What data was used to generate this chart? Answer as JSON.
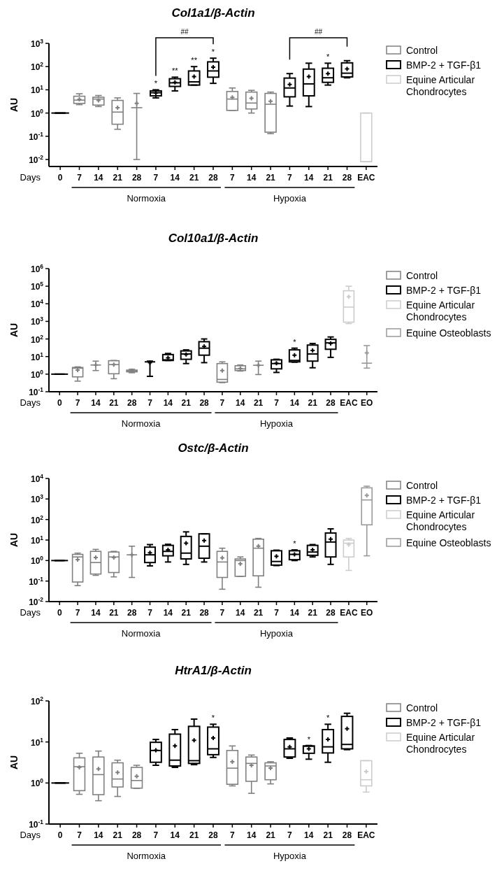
{
  "chart_data": [
    {
      "type": "box",
      "title": "Col1a1/β-Actin",
      "xlabel": "Days",
      "ylabel": "AU",
      "log": true,
      "legend": "right",
      "ylim": [
        0.005,
        1000
      ],
      "yticks": [
        {
          "value": 0.01,
          "label": "10$^{-2}$"
        },
        {
          "value": 0.1,
          "label": "10$^{-1}$"
        },
        {
          "value": 1,
          "label": "10$^{0}$"
        },
        {
          "value": 10,
          "label": "10$^{1}$"
        },
        {
          "value": 100,
          "label": "10$^{2}$"
        },
        {
          "value": 1000,
          "label": "10$^{3}$"
        }
      ],
      "categories": [
        "0",
        "7",
        "14",
        "21",
        "28",
        "7",
        "14",
        "21",
        "28",
        "7",
        "14",
        "21",
        "7",
        "14",
        "21",
        "28",
        "EAC"
      ],
      "annotations": [
        "*",
        "**",
        "**",
        "*",
        "*",
        "##",
        "##",
        "Normoxia",
        "Hypoxia"
      ],
      "series": [
        {
          "color": "#000000",
          "boxes": [
            {
              "low": 1,
              "q1": 1,
              "median": 1,
              "q3": 1,
              "high": 1
            },
            null,
            null,
            null,
            null,
            null,
            null,
            null,
            null,
            null,
            null,
            null,
            null,
            null,
            null,
            null,
            null
          ]
        },
        {
          "name": "Control",
          "color": "#808080",
          "boxes": [
            null,
            {
              "low": 2.3,
              "q1": 2.6,
              "median": 3.6,
              "q3": 5.3,
              "high": 6.8,
              "mean": 3.9
            },
            {
              "low": 1.9,
              "q1": 2.2,
              "median": 4,
              "q3": 4.8,
              "high": 5.7,
              "mean": 3.5
            },
            {
              "low": 0.2,
              "q1": 0.33,
              "median": 1.1,
              "q3": 3.5,
              "high": 4.5,
              "mean": 1.7
            },
            {
              "low": 0.01,
              "q1": 1.7,
              "median": 1.7,
              "q3": 1.7,
              "high": 7,
              "mean": 2.6
            },
            null,
            null,
            null,
            null,
            {
              "low": 1.3,
              "q1": 1.3,
              "median": 4,
              "q3": 8.5,
              "high": 12,
              "mean": 4.7
            },
            {
              "low": 1,
              "q1": 1.5,
              "median": 2.7,
              "q3": 8,
              "high": 9.5,
              "mean": 4.3
            },
            {
              "low": 0.13,
              "q1": 0.15,
              "median": 2.4,
              "q3": 7,
              "high": 8,
              "mean": 3.2
            },
            null,
            null,
            null,
            null,
            null
          ]
        },
        {
          "name": "BMP-2 + TGF-β1",
          "color": "#000000",
          "boxes": [
            null,
            null,
            null,
            null,
            null,
            {
              "low": 4.5,
              "q1": 5.5,
              "median": 7.5,
              "q3": 9,
              "high": 10,
              "mean": 7.3
            },
            {
              "low": 9,
              "q1": 14,
              "median": 20,
              "q3": 30,
              "high": 35,
              "mean": 21
            },
            {
              "low": 16,
              "q1": 16,
              "median": 22,
              "q3": 65,
              "high": 100,
              "mean": 37
            },
            {
              "low": 19,
              "q1": 35,
              "median": 65,
              "q3": 160,
              "high": 230,
              "mean": 95
            },
            null,
            null,
            null,
            {
              "low": 2,
              "q1": 5,
              "median": 12,
              "q3": 32,
              "high": 50,
              "mean": 17
            },
            {
              "low": 1.9,
              "q1": 5.5,
              "median": 18,
              "q3": 78,
              "high": 140,
              "mean": 37
            },
            {
              "low": 16,
              "q1": 21,
              "median": 33,
              "q3": 85,
              "high": 140,
              "mean": 50
            },
            {
              "low": 33,
              "q1": 36,
              "median": 52,
              "q3": 145,
              "high": 180,
              "mean": 80
            },
            null
          ]
        },
        {
          "name": "Equine Articular Chondrocytes",
          "color": "#cccccc",
          "boxes": [
            null,
            null,
            null,
            null,
            null,
            null,
            null,
            null,
            null,
            null,
            null,
            null,
            null,
            null,
            null,
            null,
            {
              "low": 0.008,
              "q1": 0.008,
              "median": 0.008,
              "q3": 1,
              "high": 1
            }
          ]
        }
      ]
    },
    {
      "type": "box",
      "title": "Col10a1/β-Actin",
      "xlabel": "Days",
      "ylabel": "AU",
      "log": true,
      "legend": "right",
      "ylim": [
        0.1,
        1000000
      ],
      "yticks": [
        {
          "value": 0.1,
          "label": "10$^{-1}$"
        },
        {
          "value": 1,
          "label": "10$^{0}$"
        },
        {
          "value": 10,
          "label": "10$^{1}$"
        },
        {
          "value": 100,
          "label": "10$^{2}$"
        },
        {
          "value": 1000,
          "label": "10$^{3}$"
        },
        {
          "value": 10000,
          "label": "10$^{4}$"
        },
        {
          "value": 100000,
          "label": "10$^{5}$"
        },
        {
          "value": 1000000,
          "label": "10$^{6}$"
        }
      ],
      "categories": [
        "0",
        "7",
        "14",
        "21",
        "28",
        "7",
        "14",
        "21",
        "28",
        "7",
        "14",
        "21",
        "7",
        "14",
        "21",
        "28",
        "EAC",
        "EO"
      ],
      "annotations": [
        "*",
        "Normoxia",
        "Hypoxia"
      ],
      "series": [
        {
          "color": "#000000",
          "boxes": [
            {
              "low": 1,
              "q1": 1,
              "median": 1,
              "q3": 1,
              "high": 1
            },
            null,
            null,
            null,
            null,
            null,
            null,
            null,
            null,
            null,
            null,
            null,
            null,
            null,
            null,
            null,
            null,
            null
          ]
        },
        {
          "name": "Control",
          "color": "#808080",
          "boxes": [
            null,
            {
              "low": 0.4,
              "q1": 0.7,
              "median": 2.2,
              "q3": 2.4,
              "high": 2.6,
              "mean": 1.7
            },
            {
              "low": 1.6,
              "q1": 3.3,
              "median": 3.3,
              "q3": 3.3,
              "high": 5.5,
              "mean": 3.3
            },
            {
              "low": 0.55,
              "q1": 1.05,
              "median": 3.5,
              "q3": 5.8,
              "high": 6,
              "mean": 3.5
            },
            {
              "low": 1.2,
              "q1": 1.35,
              "median": 1.55,
              "q3": 1.7,
              "high": 1.9,
              "mean": 1.6
            },
            null,
            null,
            null,
            null,
            {
              "low": 0.33,
              "q1": 0.35,
              "median": 0.5,
              "q3": 4,
              "high": 5,
              "mean": 1.6
            },
            {
              "low": 1.5,
              "q1": 1.6,
              "median": 2,
              "q3": 3,
              "high": 3.3,
              "mean": 2.1
            },
            {
              "low": 0.95,
              "q1": 3.2,
              "median": 3.2,
              "q3": 3.2,
              "high": 5.5,
              "mean": 3.2
            },
            null,
            null,
            null,
            null,
            null,
            null
          ]
        },
        {
          "name": "BMP-2 + TGF-β1",
          "color": "#000000",
          "boxes": [
            null,
            null,
            null,
            null,
            null,
            {
              "low": 0.75,
              "q1": 5,
              "median": 5,
              "q3": 5,
              "high": 5.5,
              "mean": 4.5
            },
            {
              "low": 6,
              "q1": 6,
              "median": 6.5,
              "q3": 13,
              "high": 15,
              "mean": 8.5
            },
            {
              "low": 4,
              "q1": 7,
              "median": 14,
              "q3": 21,
              "high": 24,
              "mean": 13
            },
            {
              "low": 4.5,
              "q1": 12,
              "median": 30,
              "q3": 70,
              "high": 100,
              "mean": 38
            },
            null,
            null,
            null,
            {
              "low": 1.25,
              "q1": 2,
              "median": 4,
              "q3": 6.5,
              "high": 7,
              "mean": 4.2
            },
            {
              "low": 4.8,
              "q1": 5,
              "median": 6,
              "q3": 24,
              "high": 30,
              "mean": 12
            },
            {
              "low": 2.3,
              "q1": 5.5,
              "median": 14,
              "q3": 45,
              "high": 55,
              "mean": 22
            },
            {
              "low": 9,
              "q1": 26,
              "median": 60,
              "q3": 95,
              "high": 130,
              "mean": 55
            },
            null,
            null
          ]
        },
        {
          "name": "Equine Articular Chondrocytes",
          "color": "#cccccc",
          "boxes": [
            null,
            null,
            null,
            null,
            null,
            null,
            null,
            null,
            null,
            null,
            null,
            null,
            null,
            null,
            null,
            null,
            {
              "low": 750,
              "q1": 900,
              "median": 6500,
              "q3": 55000,
              "high": 100000,
              "mean": 25000
            },
            null
          ]
        },
        {
          "name": "Equine Osteoblasts",
          "color": "#999999",
          "boxes": [
            null,
            null,
            null,
            null,
            null,
            null,
            null,
            null,
            null,
            null,
            null,
            null,
            null,
            null,
            null,
            null,
            null,
            {
              "low": 2.2,
              "q1": 4.2,
              "median": 4.2,
              "q3": 4.2,
              "high": 42,
              "mean": 16
            }
          ]
        }
      ]
    },
    {
      "type": "box",
      "title": "Ostc/β-Actin",
      "xlabel": "Days",
      "ylabel": "AU",
      "log": true,
      "legend": "right",
      "ylim": [
        0.01,
        10000
      ],
      "yticks": [
        {
          "value": 0.01,
          "label": "10$^{-2}$"
        },
        {
          "value": 0.1,
          "label": "10$^{-1}$"
        },
        {
          "value": 1,
          "label": "10$^{0}$"
        },
        {
          "value": 10,
          "label": "10$^{1}$"
        },
        {
          "value": 100,
          "label": "10$^{2}$"
        },
        {
          "value": 1000,
          "label": "10$^{3}$"
        },
        {
          "value": 10000,
          "label": "10$^{4}$"
        }
      ],
      "categories": [
        "0",
        "7",
        "14",
        "21",
        "28",
        "7",
        "14",
        "21",
        "28",
        "7",
        "14",
        "21",
        "7",
        "14",
        "21",
        "28",
        "EAC",
        "EO"
      ],
      "annotations": [
        "*",
        "Normoxia",
        "Hypoxia"
      ],
      "series": [
        {
          "color": "#000000",
          "boxes": [
            {
              "low": 1,
              "q1": 1,
              "median": 1,
              "q3": 1,
              "high": 1
            },
            null,
            null,
            null,
            null,
            null,
            null,
            null,
            null,
            null,
            null,
            null,
            null,
            null,
            null,
            null,
            null,
            null
          ]
        },
        {
          "name": "Control",
          "color": "#808080",
          "boxes": [
            null,
            {
              "low": 0.06,
              "q1": 0.09,
              "median": 1.5,
              "q3": 2,
              "high": 2.3,
              "mean": 1.1
            },
            {
              "low": 0.19,
              "q1": 0.22,
              "median": 0.8,
              "q3": 2.8,
              "high": 3.5,
              "mean": 1.4
            },
            {
              "low": 0.16,
              "q1": 0.26,
              "median": 1.5,
              "q3": 2.6,
              "high": 2.8,
              "mean": 1.4
            },
            {
              "low": 0.15,
              "q1": 1.9,
              "median": 1.9,
              "q3": 1.9,
              "high": 5,
              "mean": 1.9
            },
            null,
            null,
            null,
            null,
            {
              "low": 0.04,
              "q1": 0.15,
              "median": 0.85,
              "q3": 2.8,
              "high": 4,
              "mean": 1.35
            },
            {
              "low": 0.17,
              "q1": 0.17,
              "median": 1,
              "q3": 1.2,
              "high": 1.5,
              "mean": 0.7
            },
            {
              "low": 0.05,
              "q1": 0.18,
              "median": 4,
              "q3": 11,
              "high": 12,
              "mean": 5
            },
            null,
            null,
            null,
            null,
            null,
            null
          ]
        },
        {
          "name": "BMP-2 + TGF-β1",
          "color": "#000000",
          "boxes": [
            null,
            null,
            null,
            null,
            null,
            {
              "low": 0.55,
              "q1": 0.8,
              "median": 1.9,
              "q3": 4.5,
              "high": 6,
              "mean": 2.4
            },
            {
              "low": 0.85,
              "q1": 1.7,
              "median": 2.8,
              "q3": 5.5,
              "high": 6.2,
              "mean": 3.3
            },
            {
              "low": 0.65,
              "q1": 1.2,
              "median": 2.3,
              "q3": 15,
              "high": 25,
              "mean": 7
            },
            {
              "low": 0.85,
              "q1": 1.3,
              "median": 5,
              "q3": 20,
              "high": 20,
              "mean": 9.5
            },
            null,
            null,
            null,
            {
              "low": 0.57,
              "q1": 0.6,
              "median": 0.9,
              "q3": 3,
              "high": 3.2,
              "mean": 1.6
            },
            {
              "low": 1,
              "q1": 1.1,
              "median": 2,
              "q3": 3,
              "high": 3.3,
              "mean": 2
            },
            {
              "low": 1.5,
              "q1": 1.8,
              "median": 2.6,
              "q3": 5.5,
              "high": 6,
              "mean": 3.3
            },
            {
              "low": 0.65,
              "q1": 1.5,
              "median": 8,
              "q3": 22,
              "high": 35,
              "mean": 11
            },
            null,
            null
          ]
        },
        {
          "name": "Equine Articular Chondrocytes",
          "color": "#cccccc",
          "boxes": [
            null,
            null,
            null,
            null,
            null,
            null,
            null,
            null,
            null,
            null,
            null,
            null,
            null,
            null,
            null,
            null,
            {
              "low": 0.33,
              "q1": 1.5,
              "median": 7,
              "q3": 10,
              "high": 12,
              "mean": 6
            },
            null
          ]
        },
        {
          "name": "Equine Osteoblasts",
          "color": "#999999",
          "boxes": [
            null,
            null,
            null,
            null,
            null,
            null,
            null,
            null,
            null,
            null,
            null,
            null,
            null,
            null,
            null,
            null,
            null,
            {
              "low": 1.7,
              "q1": 55,
              "median": 900,
              "q3": 3500,
              "high": 4200,
              "mean": 1500
            }
          ]
        }
      ]
    },
    {
      "type": "box",
      "title": "HtrA1/β-Actin",
      "xlabel": "Days",
      "ylabel": "AU",
      "log": true,
      "legend": "right",
      "ylim": [
        0.1,
        100
      ],
      "yticks": [
        {
          "value": 0.1,
          "label": "10$^{-1}$"
        },
        {
          "value": 1,
          "label": "10$^{0}$"
        },
        {
          "value": 10,
          "label": "10$^{1}$"
        },
        {
          "value": 100,
          "label": "10$^{2}$"
        }
      ],
      "categories": [
        "0",
        "7",
        "14",
        "21",
        "28",
        "7",
        "14",
        "21",
        "28",
        "7",
        "14",
        "21",
        "7",
        "14",
        "21",
        "28",
        "EAC"
      ],
      "annotations": [
        "*",
        "*",
        "*",
        "Normoxia",
        "Hypoxia"
      ],
      "series": [
        {
          "color": "#000000",
          "boxes": [
            {
              "low": 1,
              "q1": 1,
              "median": 1,
              "q3": 1,
              "high": 1
            },
            null,
            null,
            null,
            null,
            null,
            null,
            null,
            null,
            null,
            null,
            null,
            null,
            null,
            null,
            null,
            null
          ]
        },
        {
          "name": "Control",
          "color": "#808080",
          "boxes": [
            null,
            {
              "low": 0.53,
              "q1": 0.65,
              "median": 2.5,
              "q3": 4.1,
              "high": 5.3,
              "mean": 2.4
            },
            {
              "low": 0.37,
              "q1": 0.52,
              "median": 1.6,
              "q3": 4.3,
              "high": 6,
              "mean": 2.2
            },
            {
              "low": 0.47,
              "q1": 0.8,
              "median": 1.25,
              "q3": 3.1,
              "high": 3.6,
              "mean": 1.8
            },
            {
              "low": 0.74,
              "q1": 0.75,
              "median": 1.15,
              "q3": 2.4,
              "high": 2.7,
              "mean": 1.45
            },
            null,
            null,
            null,
            null,
            {
              "low": 0.85,
              "q1": 0.93,
              "median": 2.3,
              "q3": 6.2,
              "high": 8,
              "mean": 3.3
            },
            {
              "low": 0.56,
              "q1": 1.1,
              "median": 3,
              "q3": 4.3,
              "high": 4.8,
              "mean": 2.7
            },
            {
              "low": 0.95,
              "q1": 1.2,
              "median": 2.6,
              "q3": 3.1,
              "high": 3.3,
              "mean": 2.3
            },
            null,
            null,
            null,
            null,
            null
          ]
        },
        {
          "name": "BMP-2 + TGF-β1",
          "color": "#000000",
          "boxes": [
            null,
            null,
            null,
            null,
            null,
            {
              "low": 2.7,
              "q1": 3.2,
              "median": 6.2,
              "q3": 9.8,
              "high": 11.5,
              "mean": 6.3
            },
            {
              "low": 2.4,
              "q1": 2.6,
              "median": 3.6,
              "q3": 15.5,
              "high": 20,
              "mean": 8
            },
            {
              "low": 2.8,
              "q1": 3,
              "median": 3.5,
              "q3": 24,
              "high": 36,
              "mean": 11
            },
            {
              "low": 4.2,
              "q1": 4.9,
              "median": 6.8,
              "q3": 23,
              "high": 27,
              "mean": 12.5
            },
            null,
            null,
            null,
            {
              "low": 4,
              "q1": 4.3,
              "median": 6.8,
              "q3": 11.5,
              "high": 12.5,
              "mean": 7.6
            },
            {
              "low": 3.8,
              "q1": 5.3,
              "median": 7.9,
              "q3": 8,
              "high": 8.2,
              "mean": 6.8
            },
            {
              "low": 3.2,
              "q1": 5.4,
              "median": 7.6,
              "q3": 20,
              "high": 27,
              "mean": 11.5
            },
            {
              "low": 6.5,
              "q1": 6.8,
              "median": 8.7,
              "q3": 42,
              "high": 50,
              "mean": 21
            },
            null
          ]
        },
        {
          "name": "Equine Articular Chondrocytes",
          "color": "#cccccc",
          "boxes": [
            null,
            null,
            null,
            null,
            null,
            null,
            null,
            null,
            null,
            null,
            null,
            null,
            null,
            null,
            null,
            null,
            {
              "low": 0.6,
              "q1": 0.85,
              "median": 1.2,
              "q3": 3.5,
              "high": 3.5,
              "mean": 1.9
            }
          ]
        }
      ]
    }
  ]
}
